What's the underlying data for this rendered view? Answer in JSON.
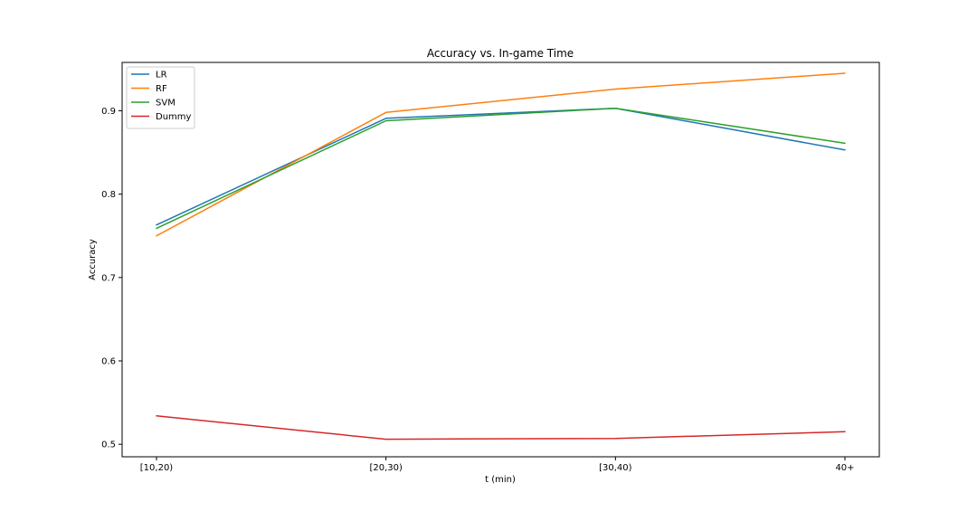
{
  "chart_data": {
    "type": "line",
    "title": "Accuracy vs. In-game Time",
    "xlabel": "t (min)",
    "ylabel": "Accuracy",
    "categories": [
      "[10,20)",
      "[20,30)",
      "[30,40)",
      "40+"
    ],
    "ylim": [
      0.485,
      0.958
    ],
    "yticks": [
      0.5,
      0.6,
      0.7,
      0.8,
      0.9
    ],
    "ytick_labels": [
      "0.5",
      "0.6",
      "0.7",
      "0.8",
      "0.9"
    ],
    "grid": false,
    "legend_position": "top-left",
    "series": [
      {
        "name": "LR",
        "color": "#1f77b4",
        "values": [
          0.763,
          0.891,
          0.903,
          0.853
        ]
      },
      {
        "name": "RF",
        "color": "#ff7f0e",
        "values": [
          0.75,
          0.898,
          0.926,
          0.945
        ]
      },
      {
        "name": "SVM",
        "color": "#2ca02c",
        "values": [
          0.759,
          0.888,
          0.903,
          0.861
        ]
      },
      {
        "name": "Dummy",
        "color": "#d62728",
        "values": [
          0.534,
          0.506,
          0.507,
          0.515
        ]
      }
    ]
  }
}
